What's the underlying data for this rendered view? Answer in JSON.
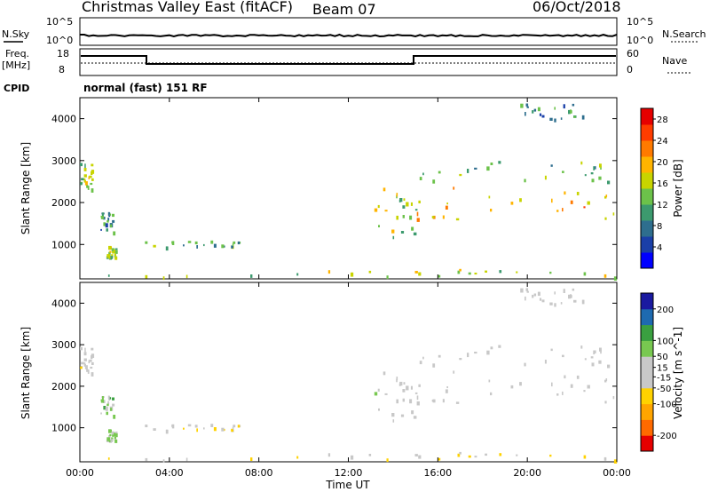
{
  "header": {
    "station": "Christmas Valley East (fitACF)",
    "beam": "Beam 07",
    "date": "06/Oct/2018"
  },
  "status_panels": {
    "nsky_label": "N.Sky",
    "nsearch_label": "N.Search",
    "noise_ticks_left": [
      "10^5",
      "10^0"
    ],
    "noise_ticks_right": [
      "10^5",
      "10^0"
    ],
    "freq_label": "Freq.",
    "freq_unit": "[MHz]",
    "freq_ticks": [
      "18",
      "8"
    ],
    "nave_label": "Nave",
    "nave_ticks": [
      "60",
      "0"
    ],
    "cpid_label": "CPID",
    "cpid_text": "normal (fast) 151 RF"
  },
  "colors": {
    "power_scale": [
      "#0000ff",
      "#1a3fa8",
      "#2e6e8e",
      "#3c9a6e",
      "#6cc24a",
      "#c8d400",
      "#ffb400",
      "#ff7a00",
      "#ff3c00",
      "#e60000"
    ],
    "velocity_scale": [
      "#e60000",
      "#ff6a00",
      "#ffa500",
      "#ffd200",
      "#c8c8c8",
      "#c8c8c8",
      "#78c850",
      "#3aa040",
      "#1e6ab0",
      "#1a1aa0"
    ],
    "ground_scatter": "#c8c8c8"
  },
  "chart_data": [
    {
      "type": "heatmap",
      "title": "",
      "xlabel": "Time UT",
      "ylabel": "Slant Range [km]",
      "x_ticks": [
        "00:00",
        "04:00",
        "08:00",
        "12:00",
        "16:00",
        "20:00",
        "00:00"
      ],
      "xlim_hours": [
        0,
        24
      ],
      "y_ticks": [
        "1000",
        "2000",
        "3000",
        "4000"
      ],
      "ylim_km": [
        180,
        4500
      ],
      "colorbar": {
        "label": "Power [dB]",
        "ticks": [
          "4",
          "8",
          "12",
          "16",
          "20",
          "24",
          "28"
        ],
        "range": [
          0,
          30
        ]
      },
      "regions": [
        {
          "t": [
            0.0,
            0.55
          ],
          "r": [
            2300,
            3000
          ],
          "level": 14
        },
        {
          "t": [
            0.9,
            1.5
          ],
          "r": [
            1300,
            1800
          ],
          "level": 10
        },
        {
          "t": [
            1.1,
            1.6
          ],
          "r": [
            700,
            1000
          ],
          "level": 14
        },
        {
          "t": [
            2.9,
            7.7
          ],
          "r": [
            950,
            1100
          ],
          "level": 11
        },
        {
          "t": [
            0.0,
            24.0
          ],
          "r": [
            230,
            420
          ],
          "level": 16
        },
        {
          "t": [
            13.1,
            15.0
          ],
          "r": [
            1200,
            2400
          ],
          "level": 15
        },
        {
          "t": [
            15.0,
            24.0
          ],
          "r": [
            1600,
            2400
          ],
          "level": 20
        },
        {
          "t": [
            15.0,
            24.0
          ],
          "r": [
            2500,
            3000
          ],
          "level": 13
        },
        {
          "t": [
            19.5,
            22.5
          ],
          "r": [
            4000,
            4400
          ],
          "level": 9
        }
      ]
    },
    {
      "type": "heatmap",
      "title": "",
      "xlabel": "Time UT",
      "ylabel": "Slant Range [km]",
      "x_ticks": [
        "00:00",
        "04:00",
        "08:00",
        "12:00",
        "16:00",
        "20:00",
        "00:00"
      ],
      "xlim_hours": [
        0,
        24
      ],
      "y_ticks": [
        "1000",
        "2000",
        "3000",
        "4000"
      ],
      "ylim_km": [
        180,
        4500
      ],
      "colorbar": {
        "label": "Velocity [m s^-1]",
        "ticks": [
          "-200",
          "-100",
          "-50",
          "-15",
          "15",
          "50",
          "100",
          "200"
        ],
        "range": [
          -250,
          250
        ]
      },
      "regions": [
        {
          "t": [
            0.0,
            0.55
          ],
          "r": [
            2300,
            3000
          ],
          "level": 0
        },
        {
          "t": [
            0.9,
            1.5
          ],
          "r": [
            1300,
            1800
          ],
          "level": 60
        },
        {
          "t": [
            1.1,
            1.6
          ],
          "r": [
            700,
            1000
          ],
          "level": 40
        },
        {
          "t": [
            2.9,
            7.7
          ],
          "r": [
            950,
            1100
          ],
          "level": -30
        },
        {
          "t": [
            0.0,
            24.0
          ],
          "r": [
            230,
            420
          ],
          "level": -40
        },
        {
          "t": [
            13.1,
            15.0
          ],
          "r": [
            1200,
            2400
          ],
          "level": 0
        },
        {
          "t": [
            15.0,
            24.0
          ],
          "r": [
            1600,
            2400
          ],
          "level": 0
        },
        {
          "t": [
            15.0,
            24.0
          ],
          "r": [
            2500,
            3000
          ],
          "level": 0
        },
        {
          "t": [
            19.5,
            22.5
          ],
          "r": [
            4000,
            4400
          ],
          "level": 0
        }
      ]
    }
  ]
}
